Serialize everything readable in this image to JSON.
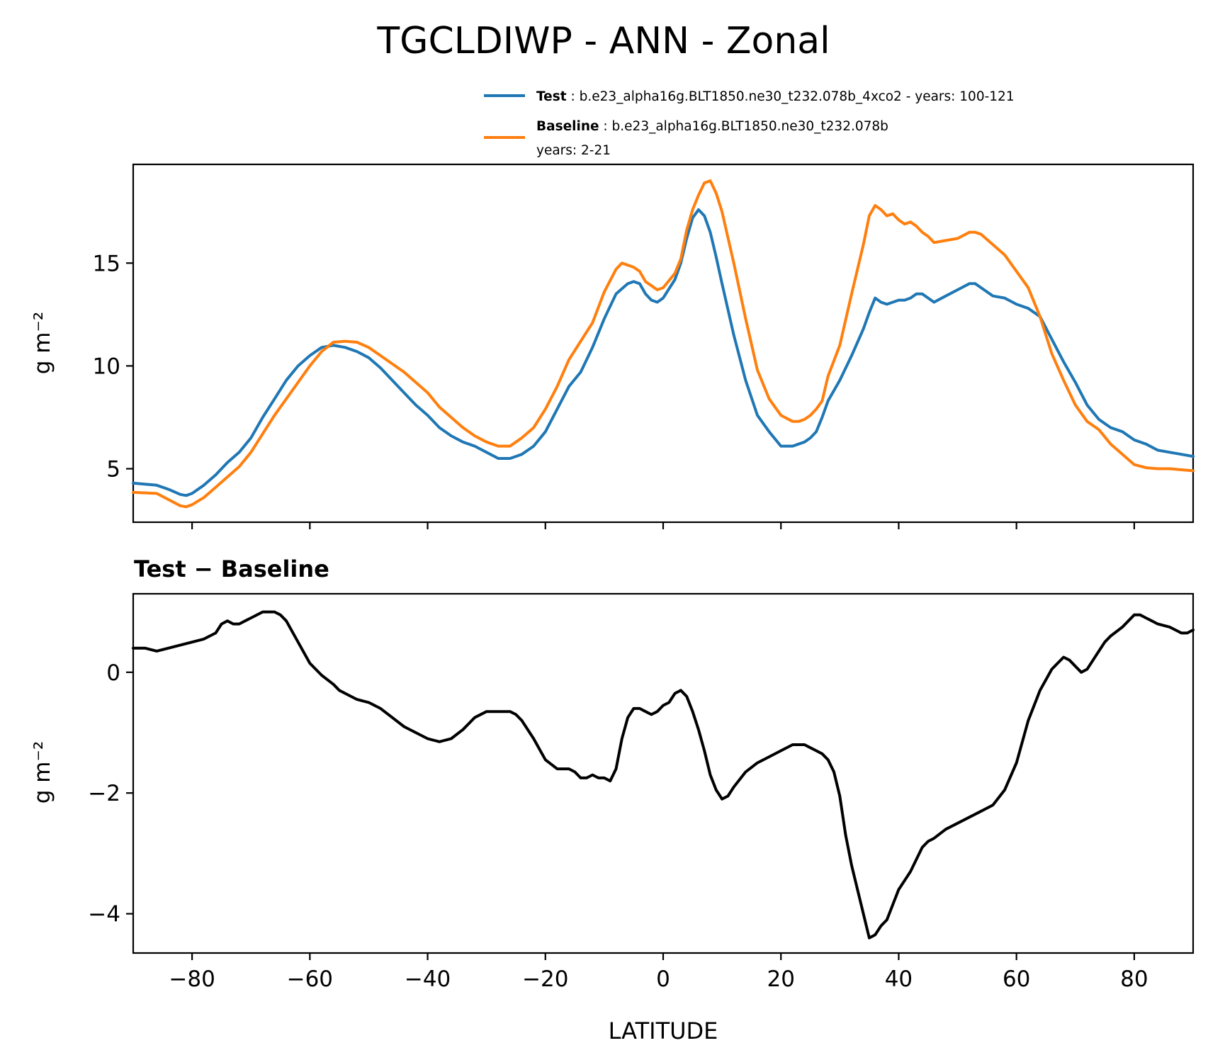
{
  "chart_data": [
    {
      "type": "line",
      "title": "TGCLDIWP - ANN - Zonal",
      "xlabel": "",
      "ylabel": "g m⁻²",
      "xlim": [
        -90,
        90
      ],
      "ylim": [
        2.4,
        19.8
      ],
      "xticks": [
        -80,
        -60,
        -40,
        -20,
        0,
        20,
        40,
        60,
        80
      ],
      "xtick_labels_shown": false,
      "yticks": [
        5,
        10,
        15
      ],
      "ytick_labels": [
        "5",
        "10",
        "15"
      ],
      "legend": {
        "position": "top-right",
        "entries": [
          {
            "label": "Test",
            "text": " : b.e23_alpha16g.BLT1850.ne30_t232.078b_4xco2 - years: 100-121",
            "text2": "",
            "color": "#1f77b4"
          },
          {
            "label": "Baseline",
            "text": " : b.e23_alpha16g.BLT1850.ne30_t232.078b",
            "text2": "years: 2-21",
            "color": "#ff7f0e"
          }
        ]
      },
      "series": [
        {
          "name": "Test",
          "color": "#1f77b4",
          "x": [
            -90,
            -86,
            -84,
            -82,
            -81,
            -80,
            -78,
            -76,
            -74,
            -72,
            -70,
            -68,
            -66,
            -64,
            -62,
            -60,
            -58,
            -56,
            -54,
            -52,
            -50,
            -48,
            -46,
            -44,
            -42,
            -40,
            -38,
            -36,
            -34,
            -32,
            -30,
            -28,
            -26,
            -25,
            -24,
            -22,
            -20,
            -18,
            -16,
            -14,
            -12,
            -10,
            -8,
            -6,
            -5,
            -4,
            -3,
            -2,
            -1,
            0,
            2,
            3,
            4,
            5,
            6,
            7,
            8,
            9,
            10,
            12,
            14,
            16,
            18,
            20,
            22,
            23,
            24,
            25,
            26,
            27,
            28,
            30,
            32,
            34,
            35,
            36,
            37,
            38,
            40,
            41,
            42,
            43,
            44,
            45,
            46,
            48,
            50,
            52,
            53,
            54,
            56,
            58,
            60,
            62,
            64,
            66,
            68,
            70,
            72,
            74,
            76,
            78,
            80,
            82,
            84,
            86,
            88,
            90
          ],
          "values": [
            4.3,
            4.2,
            4.0,
            3.75,
            3.7,
            3.8,
            4.2,
            4.7,
            5.3,
            5.8,
            6.5,
            7.5,
            8.4,
            9.3,
            10.0,
            10.5,
            10.9,
            11.0,
            10.9,
            10.7,
            10.4,
            9.9,
            9.3,
            8.7,
            8.1,
            7.6,
            7.0,
            6.6,
            6.3,
            6.1,
            5.8,
            5.5,
            5.5,
            5.6,
            5.7,
            6.1,
            6.8,
            7.9,
            9.0,
            9.7,
            10.9,
            12.3,
            13.5,
            14.0,
            14.1,
            14.0,
            13.5,
            13.2,
            13.1,
            13.3,
            14.2,
            15.0,
            16.2,
            17.2,
            17.6,
            17.3,
            16.5,
            15.3,
            14.0,
            11.5,
            9.3,
            7.6,
            6.8,
            6.1,
            6.1,
            6.2,
            6.3,
            6.5,
            6.8,
            7.5,
            8.3,
            9.3,
            10.5,
            11.8,
            12.6,
            13.3,
            13.1,
            13.0,
            13.2,
            13.2,
            13.3,
            13.5,
            13.5,
            13.3,
            13.1,
            13.4,
            13.7,
            14.0,
            14.0,
            13.8,
            13.4,
            13.3,
            13.0,
            12.8,
            12.4,
            11.3,
            10.2,
            9.2,
            8.1,
            7.4,
            7.0,
            6.8,
            6.4,
            6.2,
            5.9,
            5.8,
            5.7,
            5.6
          ]
        },
        {
          "name": "Baseline",
          "color": "#ff7f0e",
          "x": [
            -90,
            -86,
            -84,
            -82,
            -81,
            -80,
            -78,
            -76,
            -74,
            -72,
            -70,
            -68,
            -66,
            -64,
            -62,
            -60,
            -58,
            -56,
            -54,
            -52,
            -50,
            -48,
            -46,
            -44,
            -42,
            -40,
            -38,
            -36,
            -34,
            -32,
            -30,
            -28,
            -26,
            -25,
            -24,
            -22,
            -20,
            -18,
            -16,
            -14,
            -12,
            -10,
            -8,
            -7,
            -6,
            -5,
            -4,
            -3,
            -2,
            -1,
            0,
            2,
            3,
            4,
            5,
            6,
            7,
            8,
            9,
            10,
            12,
            14,
            16,
            18,
            20,
            22,
            23,
            24,
            25,
            26,
            27,
            28,
            30,
            32,
            34,
            35,
            36,
            37,
            38,
            39,
            40,
            41,
            42,
            43,
            44,
            45,
            46,
            48,
            50,
            52,
            53,
            54,
            56,
            58,
            60,
            62,
            64,
            66,
            68,
            70,
            72,
            74,
            76,
            78,
            80,
            82,
            84,
            86,
            88,
            90
          ],
          "values": [
            3.85,
            3.8,
            3.5,
            3.2,
            3.15,
            3.25,
            3.6,
            4.1,
            4.6,
            5.1,
            5.8,
            6.7,
            7.6,
            8.4,
            9.2,
            10.0,
            10.7,
            11.15,
            11.2,
            11.15,
            10.9,
            10.5,
            10.1,
            9.7,
            9.2,
            8.7,
            8.0,
            7.5,
            7.0,
            6.6,
            6.3,
            6.1,
            6.1,
            6.3,
            6.5,
            7.0,
            7.9,
            9.0,
            10.3,
            11.2,
            12.1,
            13.6,
            14.7,
            15.0,
            14.9,
            14.8,
            14.6,
            14.1,
            13.9,
            13.7,
            13.8,
            14.5,
            15.2,
            16.6,
            17.6,
            18.3,
            18.9,
            19.0,
            18.4,
            17.5,
            15.0,
            12.3,
            9.8,
            8.4,
            7.6,
            7.3,
            7.3,
            7.4,
            7.6,
            7.9,
            8.3,
            9.5,
            11.0,
            13.5,
            15.9,
            17.3,
            17.8,
            17.6,
            17.3,
            17.4,
            17.1,
            16.9,
            17.0,
            16.8,
            16.5,
            16.3,
            16.0,
            16.1,
            16.2,
            16.5,
            16.5,
            16.4,
            15.9,
            15.4,
            14.6,
            13.8,
            12.4,
            10.6,
            9.3,
            8.1,
            7.3,
            6.9,
            6.2,
            5.7,
            5.2,
            5.05,
            5.0,
            5.0,
            4.95,
            4.9
          ]
        }
      ]
    },
    {
      "type": "line",
      "title": "Test − Baseline",
      "xlabel": "LATITUDE",
      "ylabel": "g m⁻²",
      "xlim": [
        -90,
        90
      ],
      "ylim": [
        -4.65,
        1.3
      ],
      "xticks": [
        -80,
        -60,
        -40,
        -20,
        0,
        20,
        40,
        60,
        80
      ],
      "xtick_labels": [
        "−80",
        "−60",
        "−40",
        "−20",
        "0",
        "20",
        "40",
        "60",
        "80"
      ],
      "yticks": [
        -4,
        -2,
        0
      ],
      "ytick_labels": [
        "−4",
        "−2",
        "0"
      ],
      "series": [
        {
          "name": "Test − Baseline",
          "color": "#000000",
          "x": [
            -90,
            -88,
            -86,
            -84,
            -82,
            -80,
            -78,
            -76,
            -75,
            -74,
            -73,
            -72,
            -71,
            -70,
            -68,
            -66,
            -65,
            -64,
            -62,
            -60,
            -58,
            -56,
            -55,
            -54,
            -52,
            -50,
            -48,
            -46,
            -44,
            -42,
            -40,
            -38,
            -36,
            -34,
            -32,
            -30,
            -28,
            -26,
            -25,
            -24,
            -22,
            -20,
            -18,
            -16,
            -15,
            -14,
            -13,
            -12,
            -11,
            -10,
            -9,
            -8,
            -7,
            -6,
            -5,
            -4,
            -3,
            -2,
            -1,
            0,
            1,
            2,
            3,
            4,
            5,
            6,
            7,
            8,
            9,
            10,
            11,
            12,
            14,
            16,
            18,
            20,
            22,
            23,
            24,
            25,
            26,
            27,
            28,
            29,
            30,
            31,
            32,
            33,
            34,
            35,
            36,
            37,
            38,
            39,
            40,
            41,
            42,
            43,
            44,
            45,
            46,
            48,
            50,
            52,
            54,
            56,
            58,
            60,
            62,
            64,
            66,
            67,
            68,
            69,
            70,
            71,
            72,
            73,
            74,
            75,
            76,
            78,
            79,
            80,
            81,
            82,
            83,
            84,
            86,
            87,
            88,
            89,
            90
          ],
          "values": [
            0.4,
            0.4,
            0.35,
            0.4,
            0.45,
            0.5,
            0.55,
            0.65,
            0.8,
            0.85,
            0.8,
            0.8,
            0.85,
            0.9,
            1.0,
            1.0,
            0.95,
            0.85,
            0.5,
            0.15,
            -0.05,
            -0.2,
            -0.3,
            -0.35,
            -0.45,
            -0.5,
            -0.6,
            -0.75,
            -0.9,
            -1.0,
            -1.1,
            -1.15,
            -1.1,
            -0.95,
            -0.75,
            -0.65,
            -0.65,
            -0.65,
            -0.7,
            -0.8,
            -1.1,
            -1.45,
            -1.6,
            -1.6,
            -1.65,
            -1.75,
            -1.75,
            -1.7,
            -1.75,
            -1.75,
            -1.8,
            -1.6,
            -1.1,
            -0.75,
            -0.6,
            -0.6,
            -0.65,
            -0.7,
            -0.65,
            -0.55,
            -0.5,
            -0.35,
            -0.3,
            -0.4,
            -0.65,
            -0.95,
            -1.3,
            -1.7,
            -1.95,
            -2.1,
            -2.05,
            -1.9,
            -1.65,
            -1.5,
            -1.4,
            -1.3,
            -1.2,
            -1.2,
            -1.2,
            -1.25,
            -1.3,
            -1.35,
            -1.45,
            -1.65,
            -2.05,
            -2.7,
            -3.2,
            -3.6,
            -4.0,
            -4.4,
            -4.35,
            -4.2,
            -4.1,
            -3.85,
            -3.6,
            -3.45,
            -3.3,
            -3.1,
            -2.9,
            -2.8,
            -2.75,
            -2.6,
            -2.5,
            -2.4,
            -2.3,
            -2.2,
            -1.95,
            -1.5,
            -0.8,
            -0.3,
            0.05,
            0.15,
            0.25,
            0.2,
            0.1,
            0.0,
            0.05,
            0.2,
            0.35,
            0.5,
            0.6,
            0.75,
            0.85,
            0.95,
            0.95,
            0.9,
            0.85,
            0.8,
            0.75,
            0.7,
            0.65,
            0.65,
            0.7
          ]
        }
      ]
    }
  ]
}
